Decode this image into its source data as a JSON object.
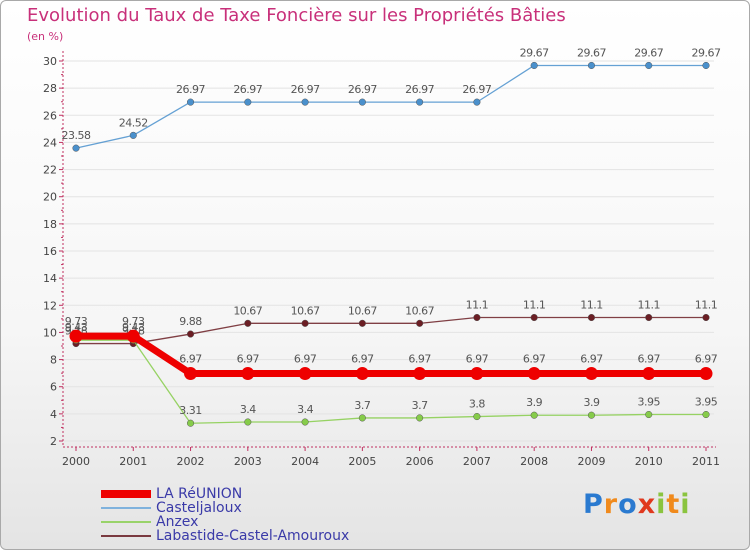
{
  "chart_data": {
    "type": "line",
    "title": "Evolution du Taux de Taxe Foncière sur les Propriétés Bâties",
    "ylabel": "(en %)",
    "xlabel": "",
    "categories": [
      "2000",
      "2001",
      "2002",
      "2003",
      "2004",
      "2005",
      "2006",
      "2007",
      "2008",
      "2009",
      "2010",
      "2011"
    ],
    "ylim": [
      2,
      30
    ],
    "yticks": [
      2,
      4,
      6,
      8,
      10,
      12,
      14,
      16,
      18,
      20,
      22,
      24,
      26,
      28,
      30
    ],
    "series": [
      {
        "name": "Casteljaloux",
        "color": "#4a90cc",
        "values": [
          23.58,
          24.52,
          26.97,
          26.97,
          26.97,
          26.97,
          26.97,
          26.97,
          29.67,
          29.67,
          29.67,
          29.67
        ],
        "labels": [
          "23.58",
          "24.52",
          "26.97",
          "26.97",
          "26.97",
          "26.97",
          "26.97",
          "26.97",
          "29.67",
          "29.67",
          "29.67",
          "29.67"
        ]
      },
      {
        "name": "Labastide-Castel-Amouroux",
        "color": "#6b1e24",
        "values": [
          9.18,
          9.18,
          9.88,
          10.67,
          10.67,
          10.67,
          10.67,
          11.1,
          11.1,
          11.1,
          11.1,
          11.1
        ],
        "labels": [
          "9.18",
          "9.18",
          "9.88",
          "10.67",
          "10.67",
          "10.67",
          "10.67",
          "11.1",
          "11.1",
          "11.1",
          "11.1",
          "11.1"
        ]
      },
      {
        "name": "Anzex",
        "color": "#86cc4a",
        "values": [
          9.43,
          9.43,
          3.31,
          3.4,
          3.4,
          3.7,
          3.7,
          3.8,
          3.9,
          3.9,
          3.95,
          3.95
        ],
        "labels": [
          "9.43",
          "9.43",
          "3.31",
          "3.4",
          "3.4",
          "3.7",
          "3.7",
          "3.8",
          "3.9",
          "3.9",
          "3.95",
          "3.95"
        ]
      },
      {
        "name": "LA RéUNION",
        "color": "#ee0000",
        "values": [
          9.73,
          9.73,
          6.97,
          6.97,
          6.97,
          6.97,
          6.97,
          6.97,
          6.97,
          6.97,
          6.97,
          6.97
        ],
        "labels": [
          "9.73",
          "9.73",
          "6.97",
          "6.97",
          "6.97",
          "6.97",
          "6.97",
          "6.97",
          "6.97",
          "6.97",
          "6.97",
          "6.97"
        ]
      }
    ],
    "legend": [
      {
        "name": "LA RéUNION",
        "color": "#ee0000",
        "weight": "thick"
      },
      {
        "name": "Casteljaloux",
        "color": "#7fb2dd",
        "weight": "thin"
      },
      {
        "name": "Anzex",
        "color": "#99d36a",
        "weight": "thin"
      },
      {
        "name": "Labastide-Castel-Amouroux",
        "color": "#7a3a40",
        "weight": "thin"
      }
    ],
    "legend_position": "bottom-left"
  },
  "brand": {
    "letters": [
      "P",
      "r",
      "o",
      "x",
      "i",
      "t",
      "i"
    ],
    "colors": [
      "#2a7ad0",
      "#f08a1c",
      "#2a7ad0",
      "#e0391e",
      "#8ac43f",
      "#f08a1c",
      "#8ac43f"
    ]
  }
}
